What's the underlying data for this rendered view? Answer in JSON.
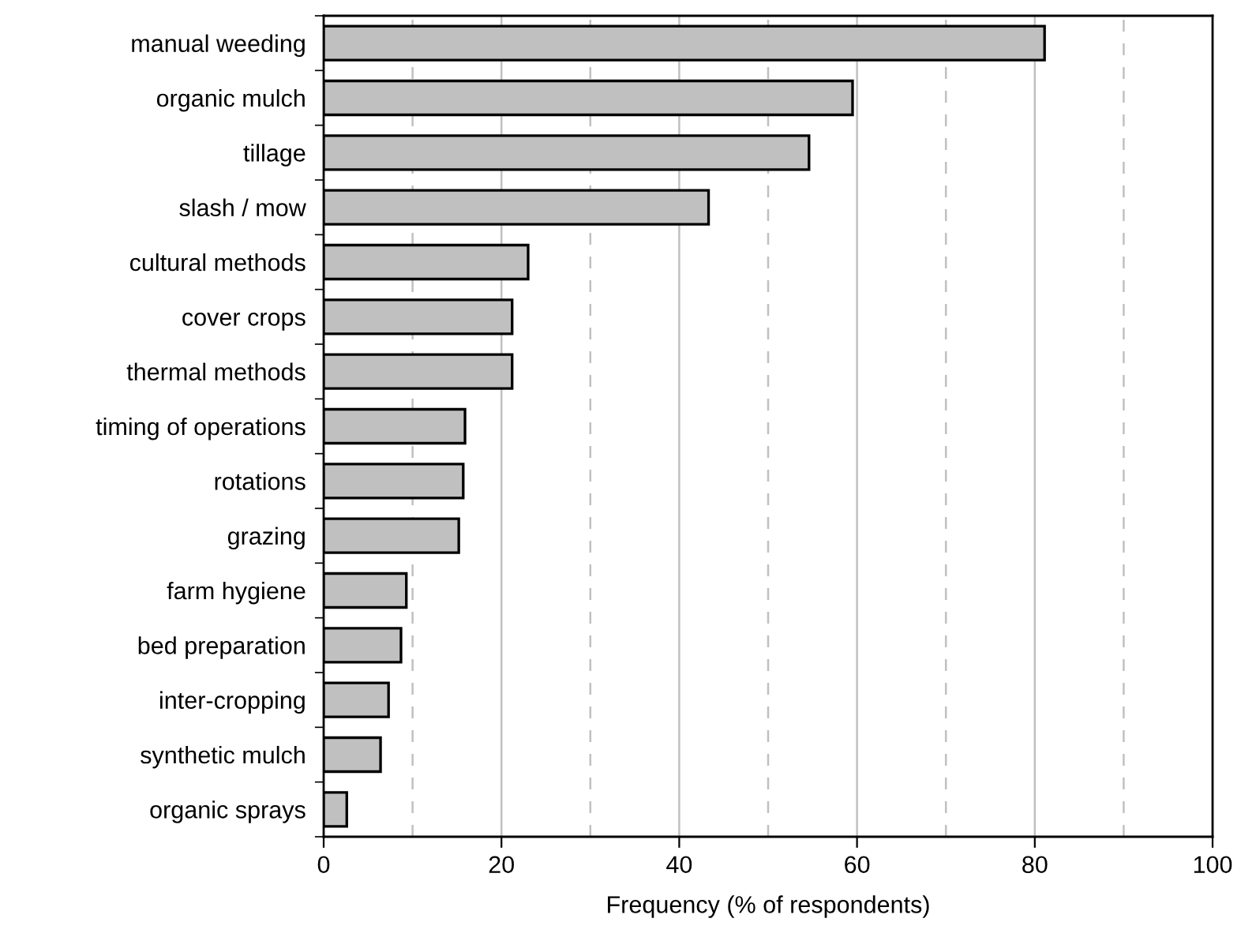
{
  "chart_data": {
    "type": "bar",
    "orientation": "horizontal",
    "xlabel": "Frequency (% of respondents)",
    "categories": [
      "manual weeding",
      "organic mulch",
      "tillage",
      "slash / mow",
      "cultural methods",
      "cover crops",
      "thermal methods",
      "timing of operations",
      "rotations",
      "grazing",
      "farm hygiene",
      "bed preparation",
      "inter-cropping",
      "synthetic mulch",
      "organic sprays"
    ],
    "values": [
      81.1,
      59.5,
      54.6,
      43.3,
      23.0,
      21.2,
      21.2,
      15.9,
      15.7,
      15.2,
      9.3,
      8.7,
      7.3,
      6.4,
      2.6
    ],
    "color": "#c0c0c0",
    "xlim": [
      0,
      100
    ],
    "xticks": [
      0,
      20,
      40,
      60,
      80,
      100
    ],
    "grid": "x"
  }
}
